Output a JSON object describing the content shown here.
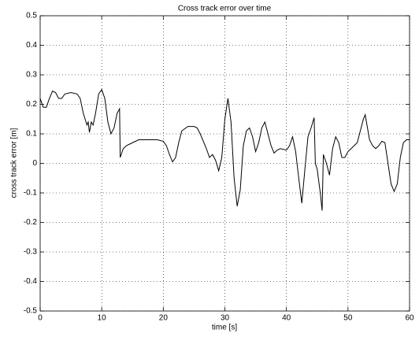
{
  "chart_data": {
    "type": "line",
    "title": "Cross track error over time",
    "x_label": "time [s]",
    "y_label": "cross track error [m]",
    "x": [
      0,
      0.5,
      1,
      1.5,
      2,
      2.5,
      3,
      3.5,
      4,
      5,
      6,
      6.5,
      7,
      7.3,
      7.6,
      7.8,
      8,
      8.3,
      8.6,
      9,
      9.5,
      10,
      10.5,
      11,
      11.5,
      12,
      12.5,
      12.9,
      13,
      13.5,
      14,
      15,
      16,
      17,
      19,
      20,
      20.5,
      21,
      21.5,
      22,
      22.5,
      23,
      24,
      25,
      25.5,
      26,
      27,
      27.5,
      28,
      28.5,
      29,
      29.5,
      30,
      30.5,
      31,
      31.5,
      32,
      32.5,
      33,
      33.5,
      34,
      34.5,
      35,
      35.5,
      36,
      36.5,
      37,
      37.5,
      38,
      38.5,
      39,
      40,
      40.5,
      41,
      41.5,
      42,
      42.5,
      43,
      43.5,
      44,
      44.5,
      44.7,
      45,
      45.5,
      45.8,
      46,
      46.5,
      47,
      47.5,
      48,
      48.5,
      49,
      49.5,
      50,
      51,
      51.5,
      52,
      52.5,
      52.8,
      53,
      53.5,
      54,
      54.5,
      55,
      55.5,
      56,
      56.5,
      57,
      57.5,
      58,
      58.5,
      59,
      59.5,
      60
    ],
    "values": [
      0.22,
      0.19,
      0.19,
      0.22,
      0.245,
      0.24,
      0.22,
      0.22,
      0.235,
      0.24,
      0.235,
      0.22,
      0.17,
      0.15,
      0.13,
      0.14,
      0.105,
      0.14,
      0.13,
      0.17,
      0.235,
      0.25,
      0.22,
      0.14,
      0.1,
      0.12,
      0.17,
      0.185,
      0.02,
      0.05,
      0.06,
      0.07,
      0.08,
      0.08,
      0.08,
      0.075,
      0.06,
      0.03,
      0.005,
      0.02,
      0.07,
      0.11,
      0.125,
      0.125,
      0.12,
      0.1,
      0.05,
      0.02,
      0.03,
      0.01,
      -0.025,
      0.02,
      0.15,
      0.22,
      0.14,
      -0.05,
      -0.145,
      -0.09,
      0.06,
      0.11,
      0.12,
      0.09,
      0.04,
      0.07,
      0.12,
      0.14,
      0.1,
      0.06,
      0.035,
      0.045,
      0.05,
      0.045,
      0.06,
      0.09,
      0.04,
      -0.05,
      -0.135,
      -0.02,
      0.09,
      0.12,
      0.155,
      0.0,
      -0.02,
      -0.1,
      -0.16,
      0.03,
      0.0,
      -0.04,
      0.05,
      0.09,
      0.07,
      0.02,
      0.02,
      0.04,
      0.06,
      0.07,
      0.11,
      0.15,
      0.165,
      0.14,
      0.08,
      0.06,
      0.05,
      0.06,
      0.075,
      0.07,
      0.0,
      -0.07,
      -0.095,
      -0.07,
      0.02,
      0.07,
      0.08,
      0.08
    ],
    "color": "#000000",
    "xlim": [
      0,
      60
    ],
    "xticks": [
      0,
      10,
      20,
      30,
      40,
      50,
      60
    ],
    "ylim": [
      -0.5,
      0.5
    ],
    "yticks": [
      -0.5,
      -0.4,
      -0.3,
      -0.2,
      -0.1,
      0,
      0.1,
      0.2,
      0.3,
      0.4,
      0.5
    ],
    "grid": true
  }
}
